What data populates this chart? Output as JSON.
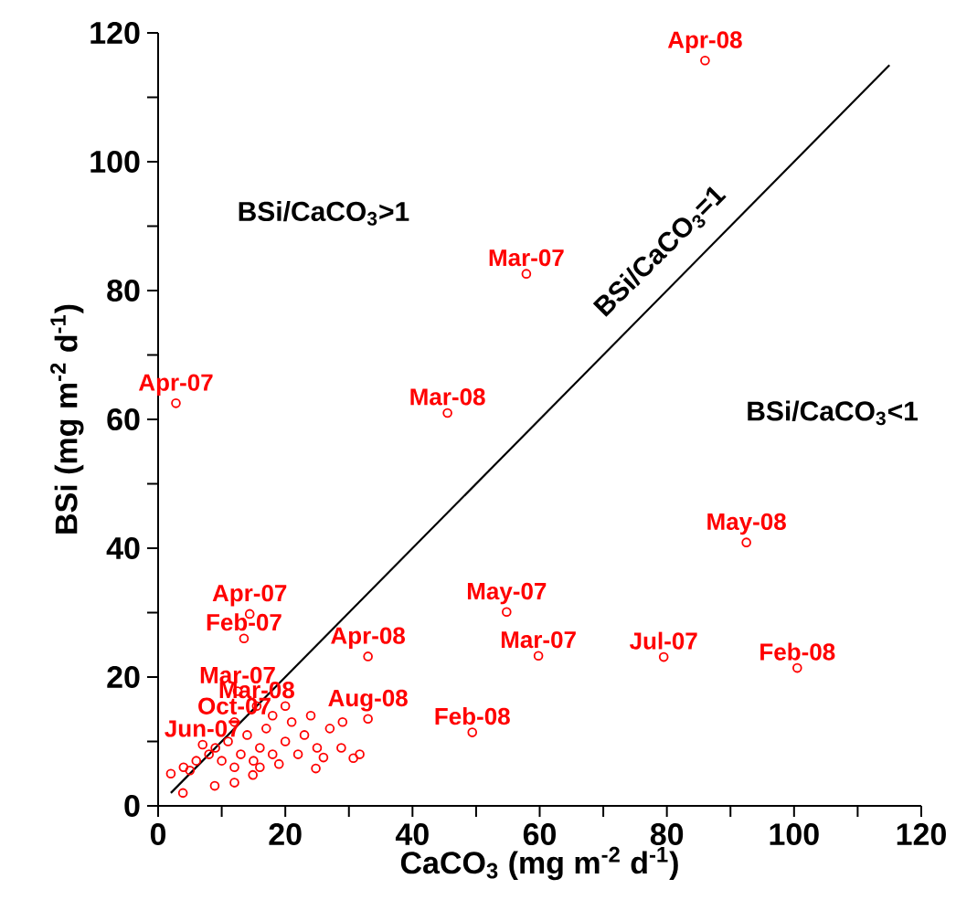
{
  "chart_data": {
    "type": "scatter",
    "xlabel": "CaCO$_{3}$ (mg m$^{-2}$ d$^{-1}$)",
    "ylabel": "BSi (mg m$^{-2}$ d$^{-1}$)",
    "xlim": [
      0,
      120
    ],
    "ylim": [
      0,
      120
    ],
    "xticks": [
      0,
      {
        "value": 10,
        "label": null
      },
      20,
      {
        "value": 30,
        "label": null
      },
      40,
      {
        "value": 50,
        "label": null
      },
      60,
      {
        "value": 70,
        "label": null
      },
      80,
      {
        "value": 90,
        "label": null
      },
      100,
      {
        "value": 110,
        "label": null
      },
      120
    ],
    "yticks": [
      0,
      {
        "value": 10,
        "label": null
      },
      20,
      {
        "value": 30,
        "label": null
      },
      40,
      {
        "value": 50,
        "label": null
      },
      60,
      {
        "value": 70,
        "label": null
      },
      80,
      {
        "value": 90,
        "label": null
      },
      100,
      {
        "value": 110,
        "label": null
      },
      120
    ],
    "series": [
      {
        "marker": "circle",
        "color": "#ff0000",
        "x": [
          86,
          57.9,
          2.8,
          45.5,
          92.5,
          54.8,
          59.8,
          79.5,
          100.5,
          33,
          14.4,
          13.5,
          12.5,
          15.5,
          49.4,
          33,
          12,
          7,
          3.9,
          24.8,
          8.9,
          12,
          14.9,
          30.7,
          31.7,
          28.8,
          2,
          4,
          5,
          6,
          8,
          9,
          10,
          11,
          12,
          13,
          14,
          15,
          16,
          17,
          18,
          19,
          20,
          21,
          22,
          23,
          24,
          25,
          27,
          29,
          20,
          18,
          16,
          26
        ],
        "values": [
          115.7,
          82.6,
          62.5,
          61,
          40.9,
          30.1,
          23.3,
          23.1,
          21.4,
          23.2,
          29.8,
          26,
          17.8,
          15.5,
          11.4,
          13.5,
          13,
          9.5,
          2,
          5.8,
          3.1,
          3.6,
          4.8,
          7.4,
          8,
          9,
          5,
          6,
          5.5,
          7,
          8,
          9,
          7,
          10,
          6,
          8,
          11,
          7,
          9,
          12,
          8,
          6.5,
          10,
          13,
          8,
          11,
          14,
          9,
          12,
          13,
          15.5,
          14,
          6,
          7.5
        ]
      },
      {
        "type": "line",
        "color": "#000000",
        "x": [
          2,
          115
        ],
        "values": [
          2,
          115
        ]
      }
    ],
    "annotations": [
      "BSi/CaCO$_{3}$>1",
      "BSi/CaCO$_{3}$<1",
      "BSi/CaCO$_{3}$=1",
      {
        "text": "Apr-08",
        "x": 86,
        "y": 115.7
      },
      {
        "text": "Mar-07",
        "x": 57.9,
        "y": 82.6
      },
      {
        "text": "Apr-07",
        "x": 2.8,
        "y": 62.5
      },
      {
        "text": "Mar-08",
        "x": 45.5,
        "y": 61
      },
      {
        "text": "May-08",
        "x": 92.5,
        "y": 40.9
      },
      {
        "text": "May-07",
        "x": 54.8,
        "y": 30.1
      },
      {
        "text": "Mar-07",
        "x": 59.8,
        "y": 23.3
      },
      {
        "text": "Jul-07",
        "x": 79.5,
        "y": 23.1
      },
      {
        "text": "Feb-08",
        "x": 100.5,
        "y": 21.4
      },
      {
        "text": "Apr-08",
        "x": 33,
        "y": 23.2
      },
      {
        "text": "Apr-07",
        "x": 14.4,
        "y": 29.8
      },
      {
        "text": "Feb-07",
        "x": 13.5,
        "y": 26
      },
      {
        "text": "Mar-07",
        "x": 12.5,
        "y": 17.8
      },
      {
        "text": "Mar-08",
        "x": 15.5,
        "y": 15.5
      },
      {
        "text": "Feb-08",
        "x": 49.4,
        "y": 11.4
      },
      {
        "text": "Aug-08",
        "x": 33,
        "y": 13.5
      },
      {
        "text": "Oct-07",
        "x": 12,
        "y": 13
      },
      {
        "text": "Jun-07",
        "x": 7,
        "y": 9.5
      }
    ]
  }
}
